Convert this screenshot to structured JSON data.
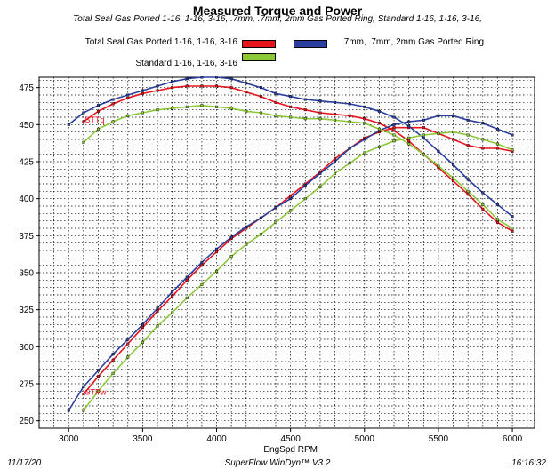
{
  "chart_data": {
    "type": "line",
    "title": "Measured Torque and Power",
    "subtitle": "Total Seal Gas Ported 1-16, 1-16, 3-16, .7mm, .7mm, 2mm Gas Ported Ring, Standard 1-16, 1-16, 3-16,",
    "xlabel": "EngSpd RPM",
    "ylabel": "",
    "xlim": [
      2800,
      6150
    ],
    "ylim": [
      245,
      482
    ],
    "x_ticks": [
      3000,
      3500,
      4000,
      4500,
      5000,
      5500,
      6000
    ],
    "y_ticks": [
      250,
      275,
      300,
      325,
      350,
      375,
      400,
      425,
      450,
      475
    ],
    "grid": true,
    "legend_position": "top",
    "series_labels": {
      "torque": "STTq",
      "power": "STPw"
    },
    "series": [
      {
        "name": "Total Seal Gas Ported 1-16, 1-16, 3-16",
        "color": "#e8141e",
        "x": [
          3100,
          3200,
          3300,
          3400,
          3500,
          3600,
          3700,
          3800,
          3900,
          4000,
          4100,
          4200,
          4300,
          4400,
          4500,
          4600,
          4700,
          4800,
          4900,
          5000,
          5100,
          5200,
          5300,
          5400,
          5500,
          5600,
          5700,
          5800,
          5900,
          6000
        ],
        "torque": [
          452,
          459,
          464,
          468,
          471,
          473,
          475,
          476,
          476,
          476,
          475,
          472,
          469,
          465,
          462,
          460,
          458,
          457,
          456,
          454,
          451,
          446,
          439,
          430,
          421,
          412,
          403,
          393,
          384,
          378
        ],
        "power": [
          268,
          280,
          291,
          302,
          313,
          324,
          334,
          345,
          355,
          364,
          373,
          380,
          387,
          394,
          402,
          410,
          418,
          427,
          434,
          441,
          445,
          448,
          448,
          448,
          444,
          440,
          436,
          434,
          434,
          432
        ]
      },
      {
        "name": ".7mm, .7mm, 2mm Gas Ported Ring",
        "color": "#2a3f9e",
        "x": [
          3000,
          3100,
          3200,
          3300,
          3400,
          3500,
          3600,
          3700,
          3800,
          3900,
          4000,
          4100,
          4200,
          4300,
          4400,
          4500,
          4600,
          4700,
          4800,
          4900,
          5000,
          5100,
          5200,
          5300,
          5400,
          5500,
          5600,
          5700,
          5800,
          5900,
          6000
        ],
        "torque": [
          450,
          458,
          463,
          467,
          470,
          473,
          476,
          479,
          481,
          482,
          482,
          481,
          478,
          475,
          471,
          469,
          467,
          466,
          465,
          464,
          462,
          459,
          455,
          449,
          441,
          432,
          423,
          413,
          404,
          396,
          388
        ],
        "power": [
          257,
          273,
          284,
          295,
          305,
          315,
          326,
          337,
          347,
          357,
          366,
          374,
          381,
          387,
          394,
          400,
          409,
          417,
          425,
          434,
          440,
          446,
          450,
          452,
          453,
          456,
          456,
          453,
          451,
          447,
          443
        ]
      },
      {
        "name": "Standard 1-16, 1-16, 3-16",
        "color": "#8cc838",
        "x": [
          3100,
          3200,
          3300,
          3400,
          3500,
          3600,
          3700,
          3800,
          3900,
          4000,
          4100,
          4200,
          4300,
          4400,
          4500,
          4600,
          4700,
          4800,
          4900,
          5000,
          5100,
          5200,
          5300,
          5400,
          5500,
          5600,
          5700,
          5800,
          5900,
          6000
        ],
        "torque": [
          438,
          447,
          452,
          456,
          458,
          460,
          461,
          462,
          463,
          462,
          461,
          459,
          458,
          456,
          455,
          454,
          454,
          453,
          452,
          451,
          447,
          443,
          437,
          430,
          422,
          414,
          405,
          396,
          386,
          380
        ],
        "power": [
          257,
          270,
          282,
          293,
          303,
          314,
          323,
          333,
          342,
          351,
          361,
          369,
          376,
          384,
          392,
          400,
          408,
          417,
          424,
          431,
          435,
          439,
          441,
          443,
          444,
          445,
          443,
          440,
          437,
          433
        ]
      }
    ]
  },
  "footer": {
    "date": "11/17/20",
    "software": "SuperFlow WinDyn™ V3.2",
    "time": "16:16:32"
  }
}
